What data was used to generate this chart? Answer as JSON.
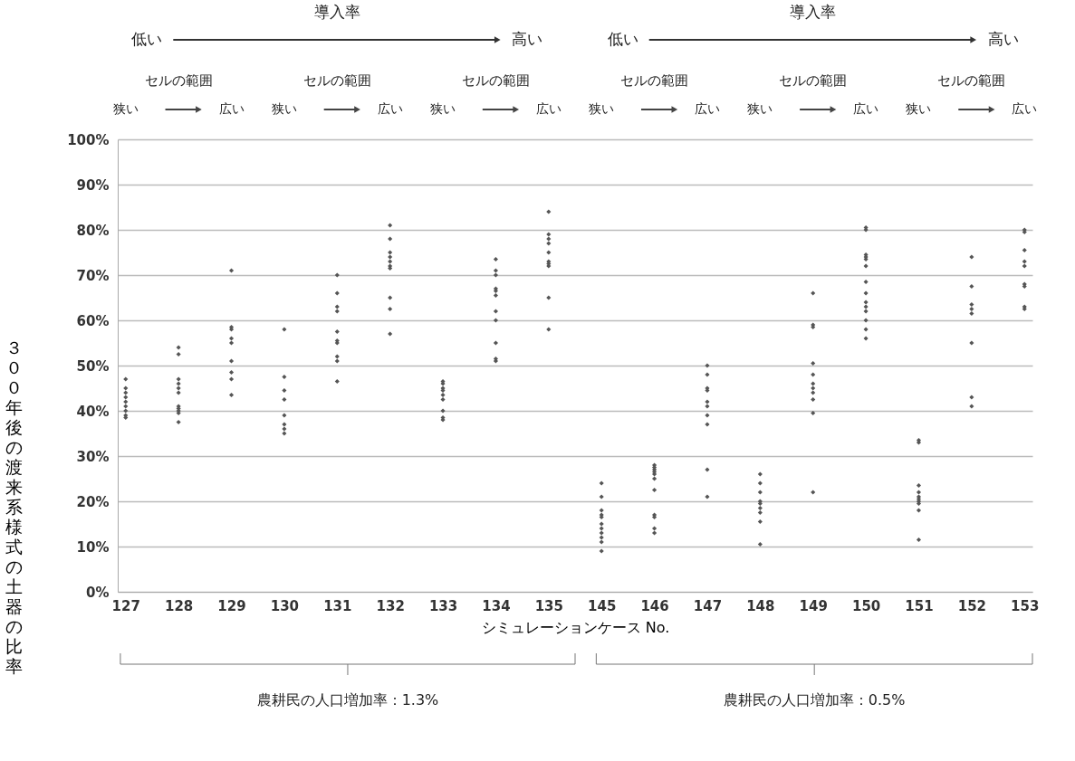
{
  "chart_data": {
    "type": "scatter",
    "xlabel": "シミュレーションケース No.",
    "ylabel": "３００年後の渡来系様式の土器の比率",
    "categories": [
      "127",
      "128",
      "129",
      "130",
      "131",
      "132",
      "133",
      "134",
      "135",
      "145",
      "146",
      "147",
      "148",
      "149",
      "150",
      "151",
      "152",
      "153"
    ],
    "series": [
      {
        "color": "#555555",
        "x": [
          "127",
          "127",
          "127",
          "127",
          "127",
          "127",
          "127",
          "127",
          "127",
          "128",
          "128",
          "128",
          "128",
          "128",
          "128",
          "128",
          "128",
          "128",
          "128",
          "128",
          "129",
          "129",
          "129",
          "129",
          "129",
          "129",
          "129",
          "129",
          "129",
          "130",
          "130",
          "130",
          "130",
          "130",
          "130",
          "130",
          "130",
          "131",
          "131",
          "131",
          "131",
          "131",
          "131",
          "131",
          "131",
          "131",
          "131",
          "132",
          "132",
          "132",
          "132",
          "132",
          "132",
          "132",
          "132",
          "132",
          "132",
          "133",
          "133",
          "133",
          "133",
          "133",
          "133",
          "133",
          "133",
          "133",
          "134",
          "134",
          "134",
          "134",
          "134",
          "134",
          "134",
          "134",
          "134",
          "134",
          "134",
          "135",
          "135",
          "135",
          "135",
          "135",
          "135",
          "135",
          "135",
          "135",
          "135",
          "145",
          "145",
          "145",
          "145",
          "145",
          "145",
          "145",
          "145",
          "145",
          "145",
          "145",
          "146",
          "146",
          "146",
          "146",
          "146",
          "146",
          "146",
          "146",
          "146",
          "146",
          "146",
          "147",
          "147",
          "147",
          "147",
          "147",
          "147",
          "147",
          "147",
          "147",
          "147",
          "148",
          "148",
          "148",
          "148",
          "148",
          "148",
          "148",
          "148",
          "148",
          "149",
          "149",
          "149",
          "149",
          "149",
          "149",
          "149",
          "149",
          "149",
          "149",
          "149",
          "150",
          "150",
          "150",
          "150",
          "150",
          "150",
          "150",
          "150",
          "150",
          "150",
          "150",
          "150",
          "150",
          "150",
          "151",
          "151",
          "151",
          "151",
          "151",
          "151",
          "151",
          "151",
          "151",
          "151",
          "152",
          "152",
          "152",
          "152",
          "152",
          "152",
          "152",
          "152",
          "153",
          "153",
          "153",
          "153",
          "153",
          "153",
          "153",
          "153",
          "153"
        ],
        "values": [
          47,
          45,
          44,
          43,
          42,
          41,
          40,
          39,
          38.5,
          54,
          52.5,
          47,
          46,
          45,
          44,
          41,
          40.5,
          40,
          39.5,
          37.5,
          71,
          58.5,
          58,
          56,
          55,
          51,
          48.5,
          47,
          43.5,
          58,
          47.5,
          44.5,
          42.5,
          39,
          37,
          36,
          35,
          70,
          66,
          63,
          62,
          57.5,
          55.5,
          55,
          52,
          51,
          46.5,
          81,
          78,
          75,
          74,
          73,
          72,
          71.5,
          65,
          62.5,
          57,
          46.5,
          46,
          45,
          44.5,
          43.5,
          42.5,
          40,
          38.5,
          38,
          73.5,
          71,
          70,
          67,
          66.5,
          65.5,
          62,
          60,
          55,
          51.5,
          51,
          84,
          79,
          78,
          77,
          75,
          73,
          72.5,
          72,
          65,
          58,
          24,
          21,
          18,
          17,
          16.5,
          15,
          14,
          13,
          12,
          11,
          9,
          28,
          27.5,
          27,
          26.5,
          26,
          25,
          22.5,
          17,
          16.5,
          14,
          13,
          50,
          48,
          45,
          44.5,
          42,
          41,
          39,
          37,
          27,
          21,
          26,
          24,
          22,
          20,
          19.5,
          18.5,
          17.5,
          15.5,
          10.5,
          66,
          59,
          58.5,
          50.5,
          48,
          46,
          45,
          44,
          42.5,
          39.5,
          22,
          80.5,
          80,
          74.5,
          74,
          73.5,
          72,
          68.5,
          66,
          64,
          63,
          62,
          60,
          58,
          56,
          33.5,
          33,
          23.5,
          22,
          21,
          20.5,
          20,
          19.5,
          18,
          11.5,
          74,
          67.5,
          63.5,
          62.5,
          61.5,
          55,
          43,
          41,
          80,
          79.5,
          75.5,
          73,
          72,
          68,
          67.5,
          63,
          62.5
        ]
      }
    ],
    "ylim": [
      0,
      100
    ],
    "yticks": [
      {
        "value": 0,
        "label": "0%"
      },
      {
        "value": 10,
        "label": "10%"
      },
      {
        "value": 20,
        "label": "20%"
      },
      {
        "value": 30,
        "label": "30%"
      },
      {
        "value": 40,
        "label": "40%"
      },
      {
        "value": 50,
        "label": "50%"
      },
      {
        "value": 60,
        "label": "60%"
      },
      {
        "value": 70,
        "label": "70%"
      },
      {
        "value": 80,
        "label": "80%"
      },
      {
        "value": 90,
        "label": "90%"
      },
      {
        "value": 100,
        "label": "100%"
      }
    ],
    "grid": "y",
    "marker": "diamond",
    "annotations": [
      "導入率",
      "低い",
      "高い",
      "セルの範囲",
      "狭い",
      "広い",
      "セルの範囲",
      "狭い",
      "広い",
      "セルの範囲",
      "狭い",
      "広い",
      "導入率",
      "低い",
      "高い",
      "セルの範囲",
      "狭い",
      "広い",
      "セルの範囲",
      "狭い",
      "広い",
      "セルの範囲",
      "狭い",
      "広い",
      "農耕民の人口増加率：1.3%",
      "農耕民の人口増加率：0.5%"
    ]
  }
}
